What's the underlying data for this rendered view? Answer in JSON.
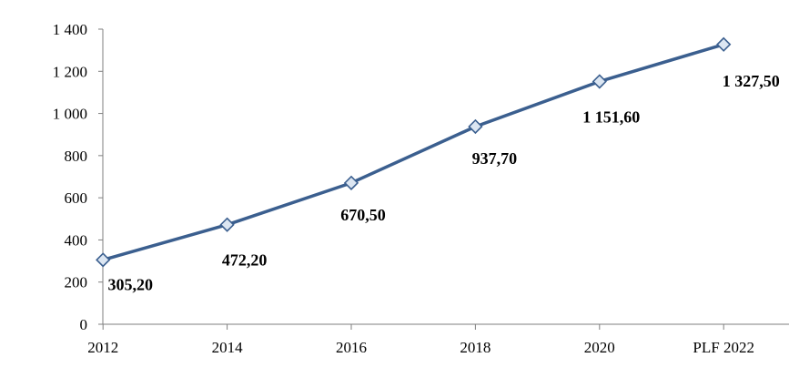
{
  "chart_data": {
    "type": "line",
    "categories": [
      "2012",
      "2014",
      "2016",
      "2018",
      "2020",
      "PLF 2022"
    ],
    "series": [
      {
        "values": [
          305.2,
          472.2,
          670.5,
          937.7,
          1151.6,
          1327.5
        ],
        "labels": [
          "305,20",
          "472,20",
          "670,50",
          "937,70",
          "1 151,60",
          "1 327,50"
        ]
      }
    ],
    "ylim": [
      0,
      1400
    ],
    "yticks": [
      0,
      200,
      400,
      600,
      800,
      1000,
      1200,
      1400
    ],
    "ytick_labels": [
      "0",
      "200",
      "400",
      "600",
      "800",
      "1 000",
      "1 200",
      "1 400"
    ],
    "marker": "diamond",
    "grid": false,
    "legend": "none",
    "title": "",
    "xlabel": "",
    "ylabel": "",
    "colors": {
      "line": "#3b5f8f",
      "marker_fill": "#dce6f2",
      "marker_stroke": "#3b5f8f",
      "axis": "#7f7f7f"
    }
  }
}
